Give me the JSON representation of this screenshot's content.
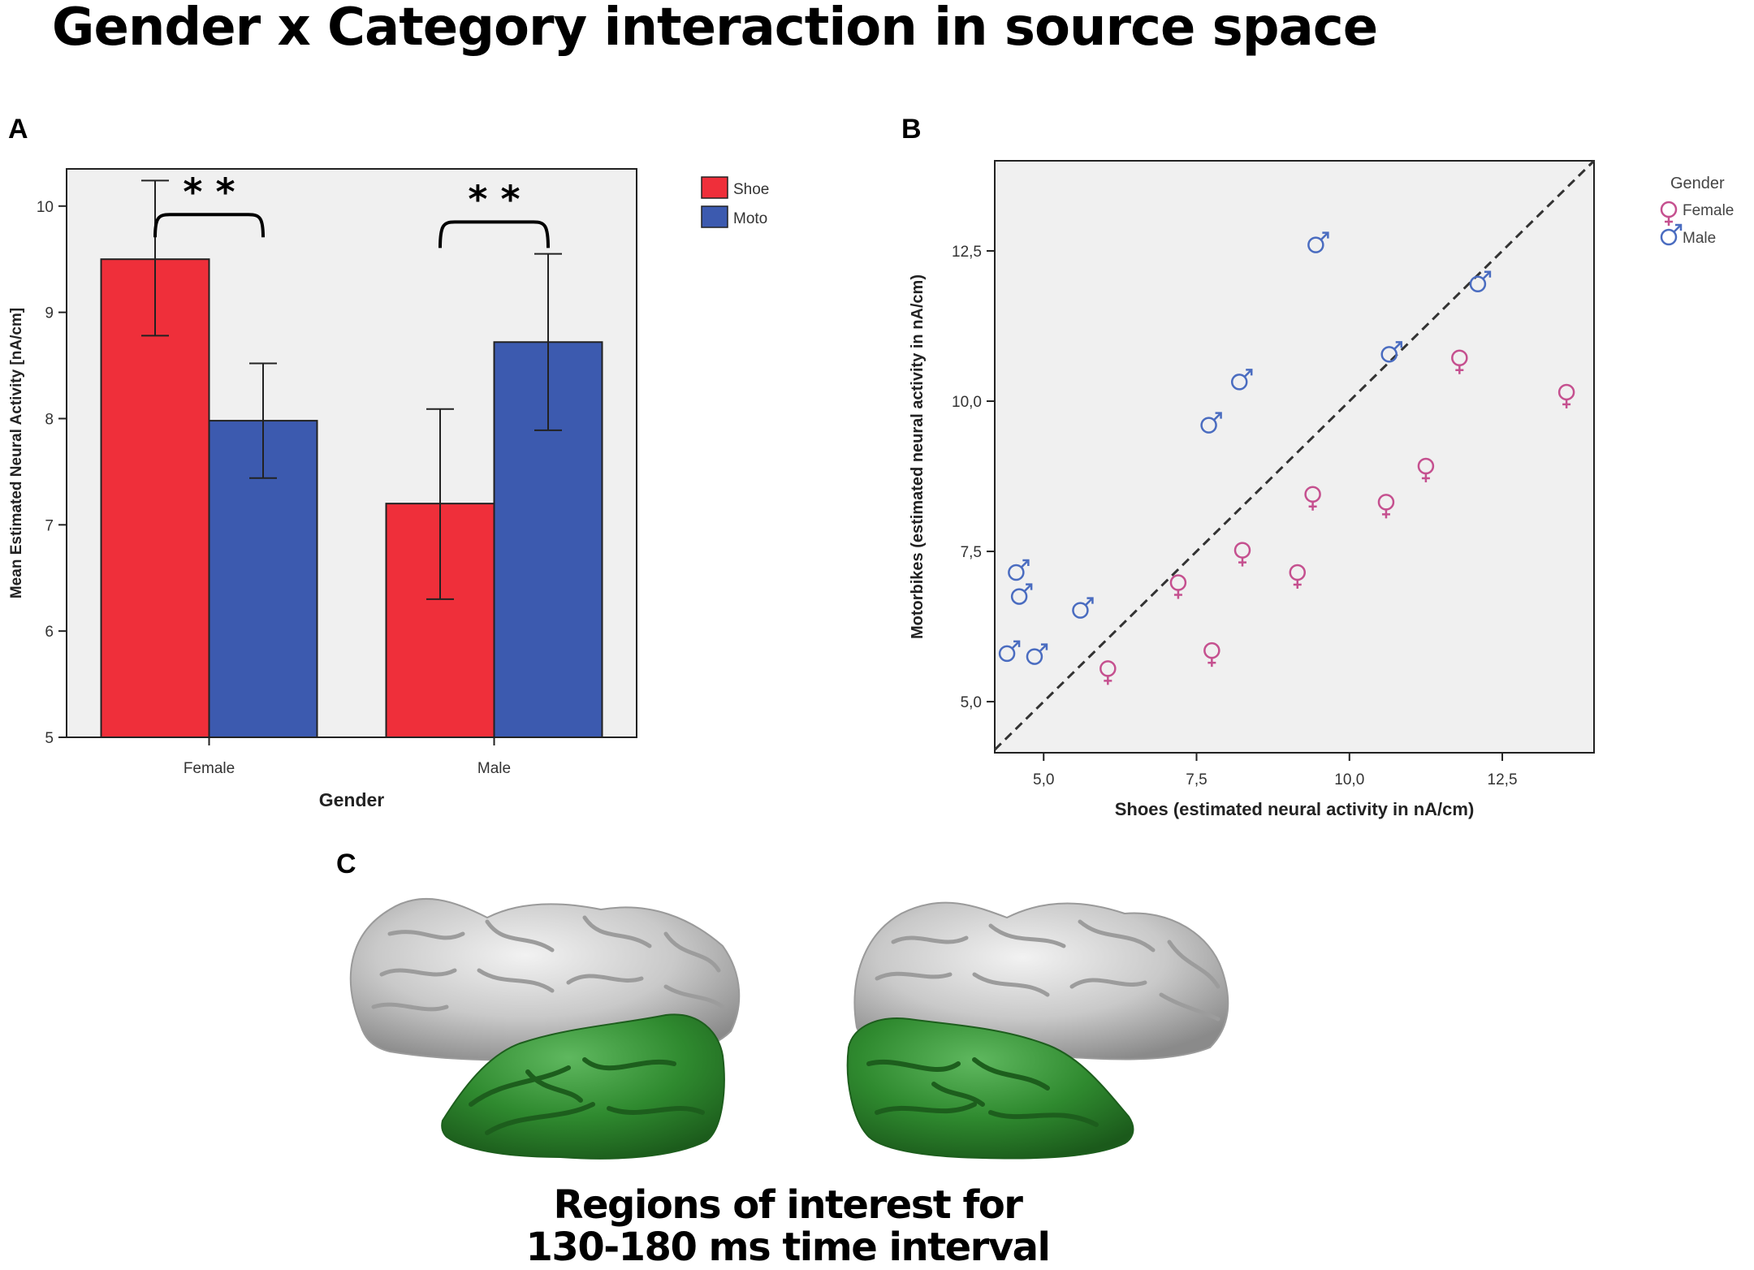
{
  "figure": {
    "title": "Gender x Category interaction in source space",
    "panel_labels": {
      "a": "A",
      "b": "B",
      "c": "C"
    },
    "roi_caption": [
      "Regions of interest for",
      "130-180 ms time interval"
    ]
  },
  "chart_data": [
    {
      "type": "bar",
      "panel": "A",
      "categories": [
        "Female",
        "Male"
      ],
      "series": [
        {
          "name": "Shoe",
          "color": "#ef2f3a",
          "values": [
            9.5,
            7.2
          ],
          "error_low": [
            8.78,
            6.3
          ],
          "error_high": [
            10.24,
            8.09
          ]
        },
        {
          "name": "Moto",
          "color": "#3c5aaf",
          "values": [
            7.98,
            8.72
          ],
          "error_low": [
            7.44,
            7.89
          ],
          "error_high": [
            8.52,
            9.55
          ]
        }
      ],
      "xlabel": "Gender",
      "ylabel": "Mean Estimated Neural Activity [nA/cm]",
      "ylim": [
        5,
        10.35
      ],
      "yticks": [
        5,
        6,
        7,
        8,
        9,
        10
      ],
      "significance": [
        {
          "category": "Female",
          "label": "* *"
        },
        {
          "category": "Male",
          "label": "* *"
        }
      ],
      "legend_position": "top-right-outside",
      "background": "#f0f0f0"
    },
    {
      "type": "scatter",
      "panel": "B",
      "xlabel": "Shoes (estimated neural activity in nA/cm)",
      "ylabel": "Motorbikes (estimated neural activity in nA/cm)",
      "xlim": [
        4.2,
        14.0
      ],
      "ylim": [
        4.15,
        14.0
      ],
      "xticks": [
        5.0,
        7.5,
        10.0,
        12.5
      ],
      "xtick_labels": [
        "5,0",
        "7,5",
        "10,0",
        "12,5"
      ],
      "yticks": [
        5.0,
        7.5,
        10.0,
        12.5
      ],
      "ytick_labels": [
        "5,0",
        "7,5",
        "10,0",
        "12,5"
      ],
      "reference_line": "identity (y = x), dashed",
      "legend_title": "Gender",
      "legend_position": "top-right-outside",
      "background": "#f0f0f0",
      "series": [
        {
          "name": "Female",
          "color": "#c5508f",
          "marker": "female-symbol",
          "points": [
            [
              6.05,
              5.55
            ],
            [
              7.2,
              6.98
            ],
            [
              7.75,
              5.85
            ],
            [
              8.25,
              7.52
            ],
            [
              9.15,
              7.15
            ],
            [
              9.4,
              8.45
            ],
            [
              10.6,
              8.32
            ],
            [
              11.25,
              8.92
            ],
            [
              11.8,
              10.72
            ],
            [
              13.55,
              10.15
            ]
          ]
        },
        {
          "name": "Male",
          "color": "#4a6cc0",
          "marker": "male-symbol",
          "points": [
            [
              4.4,
              5.8
            ],
            [
              4.85,
              5.75
            ],
            [
              4.55,
              7.15
            ],
            [
              4.6,
              6.75
            ],
            [
              5.6,
              6.52
            ],
            [
              7.7,
              9.6
            ],
            [
              8.2,
              10.32
            ],
            [
              9.45,
              12.6
            ],
            [
              10.65,
              10.78
            ],
            [
              12.1,
              11.95
            ]
          ]
        }
      ]
    }
  ],
  "brain": {
    "colors": {
      "cortex": "#c9c9c9",
      "cortex_dark": "#8f8f8f",
      "roi": "#2f8a2f",
      "roi_dark": "#1d5e1d"
    }
  }
}
